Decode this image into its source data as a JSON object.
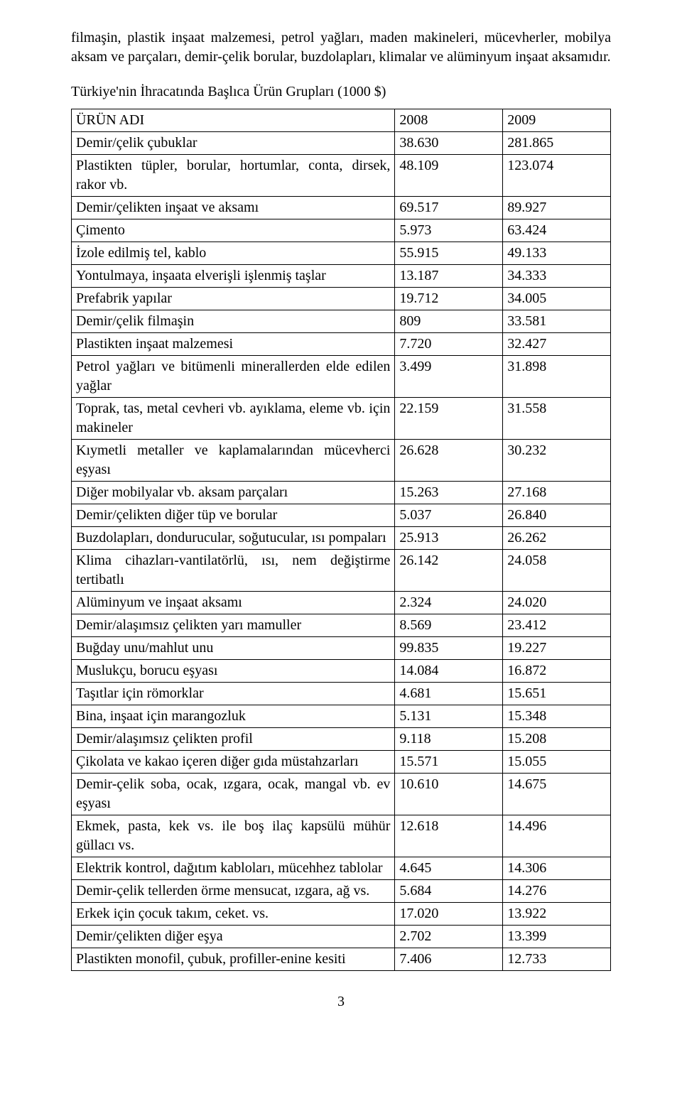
{
  "paragraph": "filmaşin, plastik inşaat malzemesi, petrol yağları, maden makineleri, mücevherler, mobilya aksam ve parçaları, demir-çelik borular, buzdolapları, klimalar ve alüminyum inşaat aksamıdır.",
  "subtitle": "Türkiye'nin İhracatında Başlıca Ürün Grupları (1000 $)",
  "table": {
    "header": [
      "ÜRÜN ADI",
      "2008",
      "2009"
    ],
    "rows": [
      [
        "Demir/çelik çubuklar",
        "38.630",
        "281.865"
      ],
      [
        "Plastikten tüpler, borular, hortumlar, conta, dirsek, rakor vb.",
        "48.109",
        "123.074"
      ],
      [
        "Demir/çelikten inşaat ve aksamı",
        "69.517",
        "89.927"
      ],
      [
        "Çimento",
        "5.973",
        "63.424"
      ],
      [
        "İzole edilmiş tel, kablo",
        "55.915",
        "49.133"
      ],
      [
        "Yontulmaya, inşaata elverişli işlenmiş taşlar",
        "13.187",
        "34.333"
      ],
      [
        "Prefabrik yapılar",
        "19.712",
        "34.005"
      ],
      [
        "Demir/çelik filmaşin",
        "809",
        "33.581"
      ],
      [
        "Plastikten inşaat malzemesi",
        "7.720",
        "32.427"
      ],
      [
        "Petrol yağları ve bitümenli minerallerden elde edilen yağlar",
        "3.499",
        "31.898"
      ],
      [
        "Toprak, tas, metal cevheri vb. ayıklama, eleme vb. için makineler",
        "22.159",
        "31.558"
      ],
      [
        "Kıymetli metaller ve kaplamalarından mücevherci eşyası",
        "26.628",
        "30.232"
      ],
      [
        "Diğer mobilyalar vb. aksam parçaları",
        "15.263",
        "27.168"
      ],
      [
        "Demir/çelikten diğer tüp ve borular",
        "5.037",
        "26.840"
      ],
      [
        "Buzdolapları, dondurucular, soğutucular, ısı pompaları",
        "25.913",
        "26.262"
      ],
      [
        "Klima cihazları-vantilatörlü, ısı, nem değiştirme tertibatlı",
        "26.142",
        "24.058"
      ],
      [
        "Alüminyum ve inşaat aksamı",
        "2.324",
        "24.020"
      ],
      [
        "Demir/alaşımsız çelikten yarı mamuller",
        "8.569",
        "23.412"
      ],
      [
        "Buğday unu/mahlut unu",
        "99.835",
        "19.227"
      ],
      [
        "Muslukçu, borucu eşyası",
        "14.084",
        "16.872"
      ],
      [
        "Taşıtlar için römorklar",
        "4.681",
        "15.651"
      ],
      [
        "Bina, inşaat için marangozluk",
        "5.131",
        "15.348"
      ],
      [
        "Demir/alaşımsız çelikten profil",
        "9.118",
        "15.208"
      ],
      [
        "Çikolata ve kakao içeren diğer gıda müstahzarları",
        "15.571",
        "15.055"
      ],
      [
        "Demir-çelik soba, ocak, ızgara, ocak, mangal vb. ev eşyası",
        "10.610",
        "14.675"
      ],
      [
        "Ekmek, pasta, kek vs. ile boş ilaç kapsülü mühür güllacı vs.",
        "12.618",
        "14.496"
      ],
      [
        "Elektrik kontrol, dağıtım kabloları, mücehhez tablolar",
        "4.645",
        "14.306"
      ],
      [
        "Demir-çelik tellerden örme mensucat, ızgara, ağ vs.",
        "5.684",
        "14.276"
      ],
      [
        "Erkek için çocuk takım, ceket. vs.",
        "17.020",
        "13.922"
      ],
      [
        "Demir/çelikten diğer eşya",
        "2.702",
        "13.399"
      ],
      [
        "Plastikten monofil, çubuk, profiller-enine kesiti",
        "7.406",
        "12.733"
      ]
    ],
    "justify_rows": [
      1,
      9,
      10,
      11,
      14,
      15,
      23,
      24,
      25,
      26,
      27,
      30
    ]
  },
  "page_number": "3"
}
